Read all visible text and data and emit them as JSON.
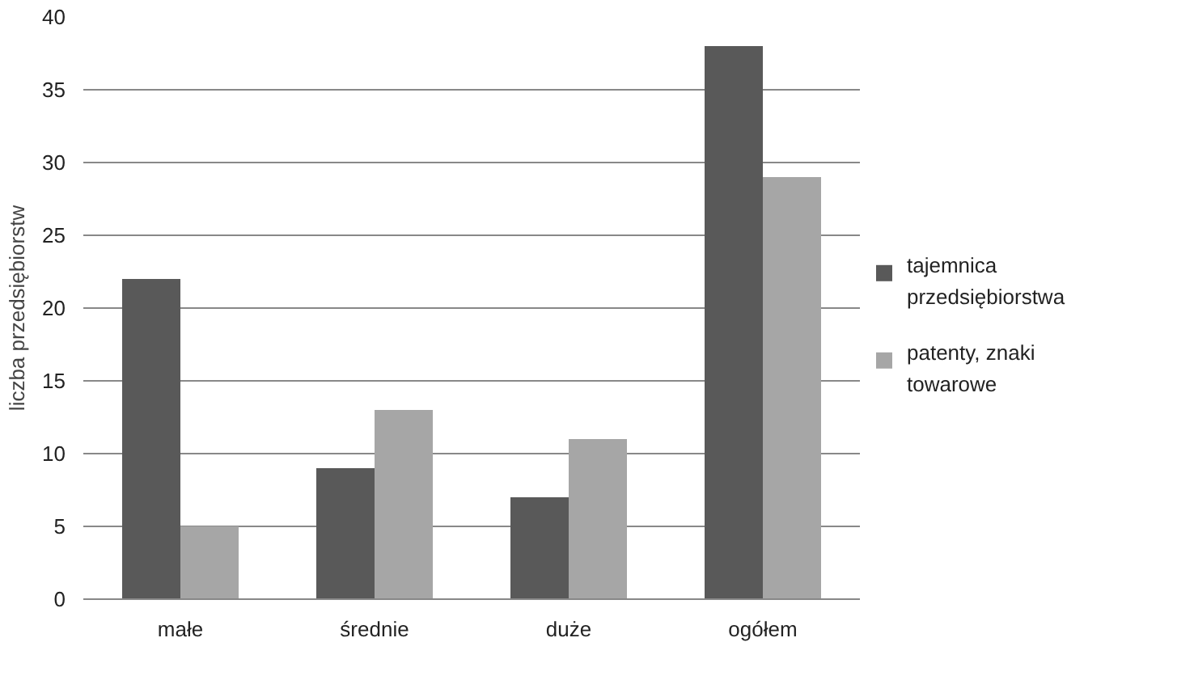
{
  "chart_data": {
    "type": "bar",
    "ylabel": "liczba przedsiębiorstw",
    "categories": [
      "małe",
      "średnie",
      "duże",
      "ogółem"
    ],
    "series": [
      {
        "name": "tajemnica przedsiębiorstwa",
        "color": "#595959",
        "values": [
          22,
          9,
          7,
          38
        ]
      },
      {
        "name": "patenty, znaki towarowe",
        "color": "#a6a6a6",
        "values": [
          5,
          13,
          11,
          29
        ]
      }
    ],
    "ylim": [
      0,
      40
    ],
    "yticks": [
      0,
      5,
      10,
      15,
      20,
      25,
      30,
      35,
      40
    ],
    "grid": "y",
    "legend": "right"
  }
}
